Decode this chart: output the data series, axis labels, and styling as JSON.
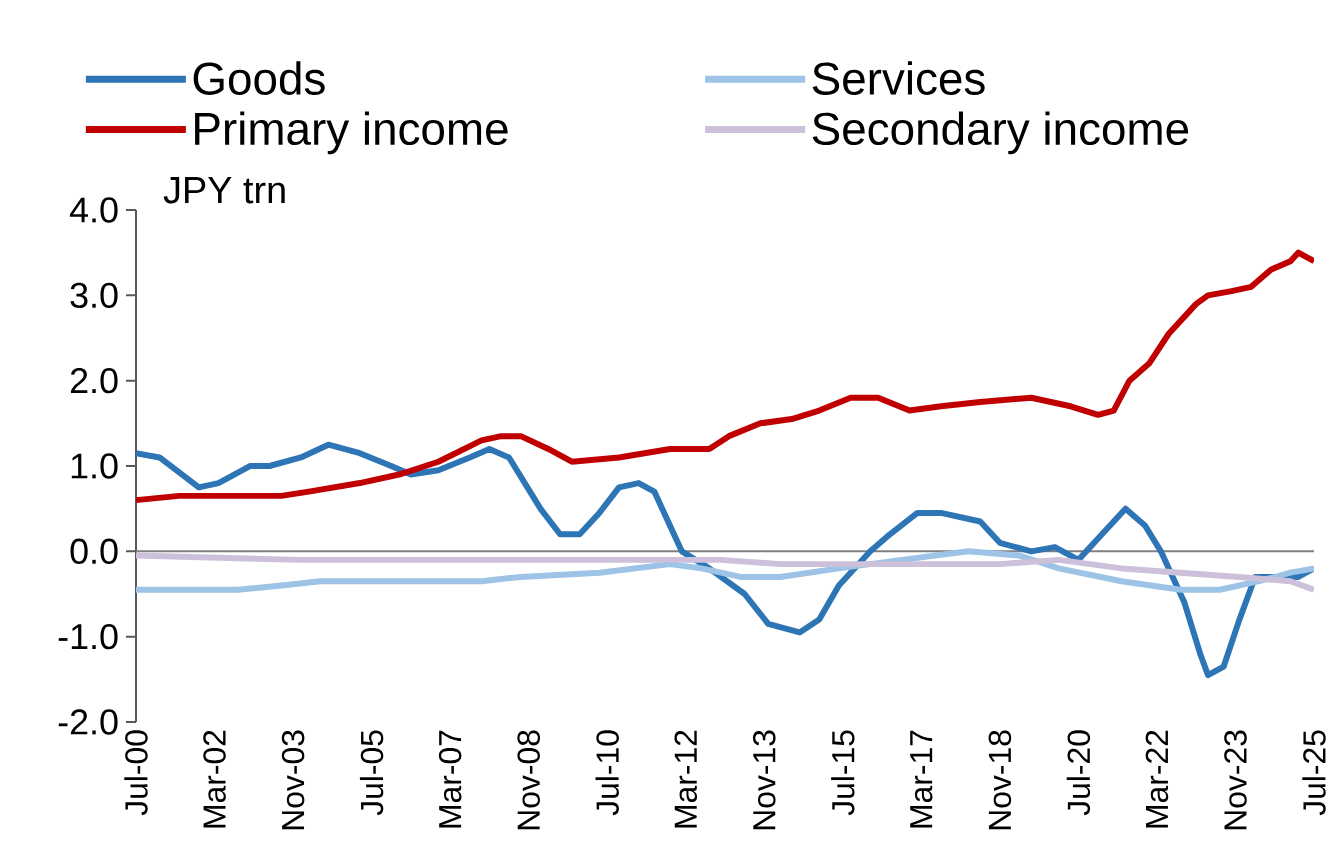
{
  "chart_data": {
    "type": "line",
    "ylabel": "JPY trn",
    "xlim": [
      "2000-07",
      "2025-07"
    ],
    "ylim": [
      -2,
      4
    ],
    "yticks": [
      {
        "value": -2,
        "label": "-2.0"
      },
      {
        "value": -1,
        "label": "-1.0"
      },
      {
        "value": 0,
        "label": "0.0"
      },
      {
        "value": 1,
        "label": "1.0"
      },
      {
        "value": 2,
        "label": "2.0"
      },
      {
        "value": 3,
        "label": "3.0"
      },
      {
        "value": 4,
        "label": "4.0"
      }
    ],
    "xticks": [
      {
        "value": "2000-07",
        "label": "Jul-00"
      },
      {
        "value": "2002-03",
        "label": "Mar-02"
      },
      {
        "value": "2003-11",
        "label": "Nov-03"
      },
      {
        "value": "2005-07",
        "label": "Jul-05"
      },
      {
        "value": "2007-03",
        "label": "Mar-07"
      },
      {
        "value": "2008-11",
        "label": "Nov-08"
      },
      {
        "value": "2010-07",
        "label": "Jul-10"
      },
      {
        "value": "2012-03",
        "label": "Mar-12"
      },
      {
        "value": "2013-11",
        "label": "Nov-13"
      },
      {
        "value": "2015-07",
        "label": "Jul-15"
      },
      {
        "value": "2017-03",
        "label": "Mar-17"
      },
      {
        "value": "2018-11",
        "label": "Nov-18"
      },
      {
        "value": "2020-07",
        "label": "Jul-20"
      },
      {
        "value": "2022-03",
        "label": "Mar-22"
      },
      {
        "value": "2023-11",
        "label": "Nov-23"
      },
      {
        "value": "2025-07",
        "label": "Jul-25"
      }
    ],
    "ref_lines": [
      {
        "axis": "y",
        "value": 0,
        "color": "#7f7f7f"
      }
    ],
    "legend": "top",
    "marker": "none",
    "line_style": "solid",
    "series": [
      {
        "name": "Goods",
        "color": "#2e75b6",
        "x": [
          "2000-07",
          "2001-01",
          "2001-11",
          "2002-04",
          "2002-12",
          "2003-05",
          "2004-01",
          "2004-08",
          "2005-04",
          "2005-12",
          "2006-05",
          "2006-12",
          "2007-08",
          "2008-01",
          "2008-06",
          "2009-02",
          "2009-07",
          "2009-12",
          "2010-05",
          "2010-10",
          "2011-03",
          "2011-07",
          "2011-11",
          "2012-02",
          "2012-09",
          "2013-06",
          "2013-12",
          "2014-08",
          "2015-01",
          "2015-06",
          "2016-02",
          "2016-07",
          "2017-02",
          "2017-08",
          "2018-06",
          "2018-11",
          "2019-07",
          "2020-01",
          "2020-07",
          "2021-01",
          "2021-07",
          "2021-12",
          "2022-04",
          "2022-10",
          "2023-02",
          "2023-04",
          "2023-08",
          "2023-12",
          "2024-04",
          "2024-10",
          "2025-03",
          "2025-07"
        ],
        "values": [
          1.15,
          1.1,
          0.75,
          0.8,
          1.0,
          1.0,
          1.1,
          1.25,
          1.15,
          1.0,
          0.9,
          0.95,
          1.1,
          1.2,
          1.1,
          0.5,
          0.2,
          0.2,
          0.45,
          0.75,
          0.8,
          0.7,
          0.3,
          0.0,
          -0.2,
          -0.5,
          -0.85,
          -0.95,
          -0.8,
          -0.4,
          0.0,
          0.2,
          0.45,
          0.45,
          0.35,
          0.1,
          0.0,
          0.05,
          -0.1,
          0.2,
          0.5,
          0.3,
          0.0,
          -0.6,
          -1.2,
          -1.45,
          -1.35,
          -0.8,
          -0.3,
          -0.3,
          -0.3,
          -0.2
        ]
      },
      {
        "name": "Services",
        "color": "#9dc3e6",
        "x": [
          "2000-07",
          "2002-09",
          "2003-08",
          "2004-06",
          "2007-11",
          "2008-09",
          "2010-05",
          "2011-11",
          "2012-07",
          "2013-05",
          "2014-03",
          "2015-06",
          "2016-10",
          "2018-03",
          "2019-04",
          "2020-02",
          "2021-06",
          "2022-09",
          "2023-07",
          "2024-05",
          "2025-01",
          "2025-07"
        ],
        "values": [
          -0.45,
          -0.45,
          -0.4,
          -0.35,
          -0.35,
          -0.3,
          -0.25,
          -0.15,
          -0.2,
          -0.3,
          -0.3,
          -0.2,
          -0.1,
          0.0,
          -0.05,
          -0.2,
          -0.35,
          -0.45,
          -0.45,
          -0.35,
          -0.25,
          -0.2
        ]
      },
      {
        "name": "Primary income",
        "color": "#c00000",
        "x": [
          "2000-07",
          "2001-06",
          "2003-08",
          "2004-03",
          "2005-04",
          "2006-02",
          "2006-12",
          "2007-11",
          "2008-04",
          "2008-09",
          "2009-04",
          "2009-10",
          "2010-10",
          "2011-11",
          "2012-09",
          "2013-02",
          "2013-10",
          "2014-06",
          "2015-01",
          "2015-09",
          "2016-04",
          "2016-12",
          "2017-08",
          "2018-06",
          "2019-07",
          "2020-05",
          "2020-12",
          "2021-04",
          "2021-08",
          "2022-01",
          "2022-06",
          "2023-01",
          "2023-04",
          "2023-10",
          "2024-03",
          "2024-08",
          "2025-01",
          "2025-03",
          "2025-07"
        ],
        "values": [
          0.6,
          0.65,
          0.65,
          0.7,
          0.8,
          0.9,
          1.05,
          1.3,
          1.35,
          1.35,
          1.2,
          1.05,
          1.1,
          1.2,
          1.2,
          1.35,
          1.5,
          1.55,
          1.65,
          1.8,
          1.8,
          1.65,
          1.7,
          1.75,
          1.8,
          1.7,
          1.6,
          1.65,
          2.0,
          2.2,
          2.55,
          2.9,
          3.0,
          3.05,
          3.1,
          3.3,
          3.4,
          3.5,
          3.4
        ]
      },
      {
        "name": "Secondary income",
        "color": "#ccc0da",
        "x": [
          "2000-07",
          "2004-01",
          "2012-12",
          "2014-03",
          "2018-11",
          "2020-02",
          "2021-06",
          "2022-09",
          "2023-12",
          "2025-01",
          "2025-07"
        ],
        "values": [
          -0.05,
          -0.1,
          -0.1,
          -0.15,
          -0.15,
          -0.1,
          -0.2,
          -0.25,
          -0.3,
          -0.35,
          -0.45
        ]
      }
    ]
  }
}
